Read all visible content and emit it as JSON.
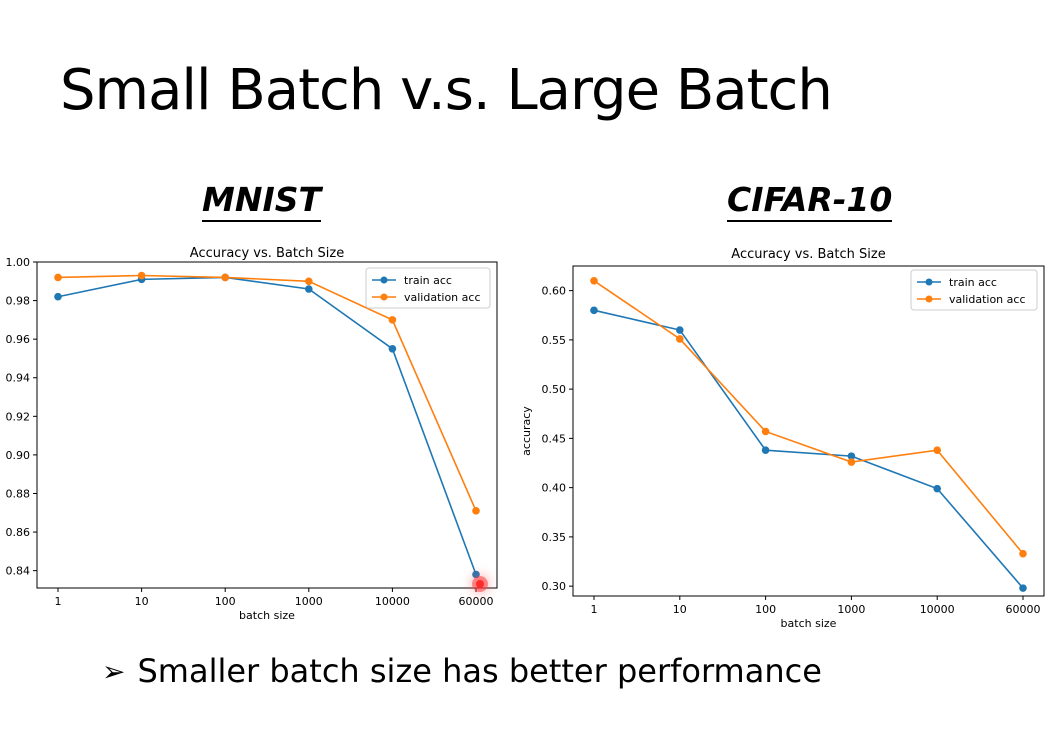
{
  "slide": {
    "title": "Small Batch v.s. Large Batch",
    "bullet": "Smaller batch size has better performance",
    "bullet_icon": "arrowhead-bullet-icon"
  },
  "datasets": [
    "MNIST",
    "CIFAR-10"
  ],
  "colors": {
    "train": "#1f77b4",
    "validation": "#ff7f0e"
  },
  "chart_data": [
    {
      "type": "line",
      "dataset": "MNIST",
      "title": "Accuracy vs. Batch Size",
      "xlabel": "batch size",
      "ylabel": "",
      "categories": [
        "1",
        "10",
        "100",
        "1000",
        "10000",
        "60000"
      ],
      "ylim": [
        0.831,
        1.0
      ],
      "yticks": [
        "0.84",
        "0.86",
        "0.88",
        "0.90",
        "0.92",
        "0.94",
        "0.96",
        "0.98",
        "1.00"
      ],
      "legend": "top-right",
      "series": [
        {
          "name": "train acc",
          "values": [
            0.982,
            0.991,
            0.992,
            0.986,
            0.955,
            0.838
          ]
        },
        {
          "name": "validation acc",
          "values": [
            0.992,
            0.993,
            0.992,
            0.99,
            0.97,
            0.871
          ]
        }
      ]
    },
    {
      "type": "line",
      "dataset": "CIFAR-10",
      "title": "Accuracy vs. Batch Size",
      "xlabel": "batch size",
      "ylabel": "accuracy",
      "categories": [
        "1",
        "10",
        "100",
        "1000",
        "10000",
        "60000"
      ],
      "ylim": [
        0.29,
        0.625
      ],
      "yticks": [
        "0.30",
        "0.35",
        "0.40",
        "0.45",
        "0.50",
        "0.55",
        "0.60"
      ],
      "legend": "top-right",
      "series": [
        {
          "name": "train acc",
          "values": [
            0.58,
            0.56,
            0.438,
            0.432,
            0.399,
            0.298
          ]
        },
        {
          "name": "validation acc",
          "values": [
            0.61,
            0.551,
            0.457,
            0.426,
            0.438,
            0.333
          ]
        }
      ]
    }
  ]
}
